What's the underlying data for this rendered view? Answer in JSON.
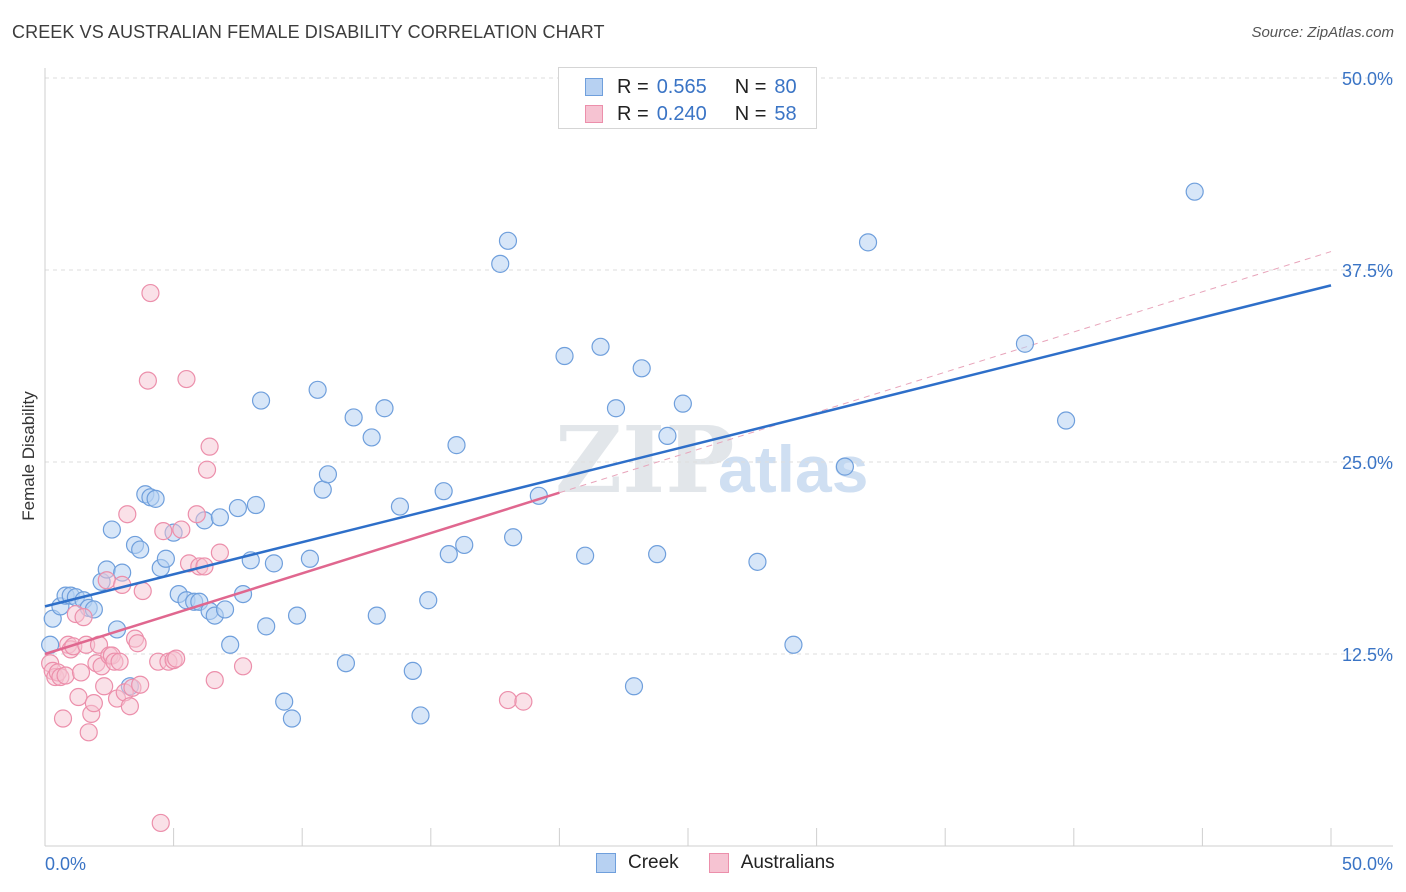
{
  "header": {
    "title": "CREEK VS AUSTRALIAN FEMALE DISABILITY CORRELATION CHART",
    "source": "Source: ZipAtlas.com"
  },
  "legend": {
    "rows": [
      {
        "r_label": "R =",
        "r_value": "0.565",
        "n_label": "N =",
        "n_value": "80"
      },
      {
        "r_label": "R =",
        "r_value": "0.240",
        "n_label": "N =",
        "n_value": "58"
      }
    ]
  },
  "watermark": {
    "zip": "ZIP",
    "atlas": "atlas"
  },
  "colors": {
    "creek_fill": "#b7d1f2",
    "creek_stroke": "#6f9fdc",
    "creek_line": "#2e6fc9",
    "aus_fill": "#f6c3d2",
    "aus_stroke": "#ec8fab",
    "aus_line": "#e0678f",
    "tick_text": "#3a74c5",
    "grid": "#dddddd"
  },
  "chart_data": {
    "type": "scatter",
    "title": "CREEK VS AUSTRALIAN FEMALE DISABILITY CORRELATION CHART",
    "xlabel": "",
    "ylabel": "Female Disability",
    "xlim": [
      0,
      50
    ],
    "ylim": [
      0,
      50
    ],
    "x_tick_labels": [
      "0.0%",
      "50.0%"
    ],
    "y_ticks": [
      12.5,
      25.0,
      37.5,
      50.0
    ],
    "y_tick_labels": [
      "12.5%",
      "25.0%",
      "37.5%",
      "50.0%"
    ],
    "legend_position": "top-center",
    "series": [
      {
        "name": "Creek",
        "r": 0.565,
        "n": 80,
        "trend": {
          "x": [
            0,
            50
          ],
          "y": [
            15.6,
            36.5
          ]
        },
        "points": [
          [
            0.2,
            13.1
          ],
          [
            0.3,
            14.8
          ],
          [
            0.6,
            15.6
          ],
          [
            0.8,
            16.3
          ],
          [
            1.0,
            16.3
          ],
          [
            1.2,
            16.2
          ],
          [
            1.5,
            16.0
          ],
          [
            1.7,
            15.5
          ],
          [
            1.9,
            15.4
          ],
          [
            2.2,
            17.2
          ],
          [
            2.4,
            18.0
          ],
          [
            2.6,
            20.6
          ],
          [
            2.8,
            14.1
          ],
          [
            3.0,
            17.8
          ],
          [
            3.3,
            10.4
          ],
          [
            3.5,
            19.6
          ],
          [
            3.7,
            19.3
          ],
          [
            3.9,
            22.9
          ],
          [
            4.1,
            22.7
          ],
          [
            4.3,
            22.6
          ],
          [
            4.5,
            18.1
          ],
          [
            4.7,
            18.7
          ],
          [
            5.0,
            20.4
          ],
          [
            5.2,
            16.4
          ],
          [
            5.5,
            16.0
          ],
          [
            5.8,
            15.9
          ],
          [
            6.0,
            15.9
          ],
          [
            6.2,
            21.2
          ],
          [
            6.4,
            15.3
          ],
          [
            6.6,
            15.0
          ],
          [
            6.8,
            21.4
          ],
          [
            7.0,
            15.4
          ],
          [
            7.2,
            13.1
          ],
          [
            7.5,
            22.0
          ],
          [
            7.7,
            16.4
          ],
          [
            8.0,
            18.6
          ],
          [
            8.2,
            22.2
          ],
          [
            8.4,
            29.0
          ],
          [
            8.6,
            14.3
          ],
          [
            8.9,
            18.4
          ],
          [
            9.3,
            9.4
          ],
          [
            9.6,
            8.3
          ],
          [
            9.8,
            15.0
          ],
          [
            10.3,
            18.7
          ],
          [
            10.6,
            29.7
          ],
          [
            10.8,
            23.2
          ],
          [
            11.0,
            24.2
          ],
          [
            11.7,
            11.9
          ],
          [
            12.0,
            27.9
          ],
          [
            12.7,
            26.6
          ],
          [
            12.9,
            15.0
          ],
          [
            13.2,
            28.5
          ],
          [
            13.8,
            22.1
          ],
          [
            14.3,
            11.4
          ],
          [
            14.6,
            8.5
          ],
          [
            14.9,
            16.0
          ],
          [
            15.5,
            23.1
          ],
          [
            15.7,
            19.0
          ],
          [
            16.0,
            26.1
          ],
          [
            16.3,
            19.6
          ],
          [
            17.7,
            37.9
          ],
          [
            18.0,
            39.4
          ],
          [
            18.2,
            20.1
          ],
          [
            19.2,
            22.8
          ],
          [
            20.2,
            31.9
          ],
          [
            21.0,
            18.9
          ],
          [
            21.6,
            32.5
          ],
          [
            22.2,
            28.5
          ],
          [
            22.9,
            10.4
          ],
          [
            23.2,
            31.1
          ],
          [
            23.8,
            19.0
          ],
          [
            24.2,
            26.7
          ],
          [
            24.8,
            28.8
          ],
          [
            27.7,
            18.5
          ],
          [
            29.1,
            13.1
          ],
          [
            31.1,
            24.7
          ],
          [
            32.0,
            39.3
          ],
          [
            38.1,
            32.7
          ],
          [
            39.7,
            27.7
          ],
          [
            44.7,
            42.6
          ]
        ]
      },
      {
        "name": "Australians",
        "r": 0.24,
        "n": 58,
        "trend": {
          "x": [
            0,
            20
          ],
          "y": [
            12.5,
            23.0
          ]
        },
        "trend_extension": {
          "x": [
            20,
            50
          ],
          "y": [
            23.0,
            38.7
          ]
        },
        "points": [
          [
            0.2,
            11.9
          ],
          [
            0.3,
            11.4
          ],
          [
            0.4,
            11.0
          ],
          [
            0.5,
            11.3
          ],
          [
            0.6,
            11.0
          ],
          [
            0.7,
            8.3
          ],
          [
            0.8,
            11.1
          ],
          [
            0.9,
            13.1
          ],
          [
            1.0,
            12.8
          ],
          [
            1.1,
            13.0
          ],
          [
            1.2,
            15.1
          ],
          [
            1.3,
            9.7
          ],
          [
            1.4,
            11.3
          ],
          [
            1.5,
            14.9
          ],
          [
            1.6,
            13.1
          ],
          [
            1.7,
            7.4
          ],
          [
            1.8,
            8.6
          ],
          [
            1.9,
            9.3
          ],
          [
            2.0,
            11.9
          ],
          [
            2.1,
            13.1
          ],
          [
            2.2,
            11.7
          ],
          [
            2.3,
            10.4
          ],
          [
            2.4,
            17.3
          ],
          [
            2.5,
            12.4
          ],
          [
            2.6,
            12.4
          ],
          [
            2.7,
            12.0
          ],
          [
            2.8,
            9.6
          ],
          [
            2.9,
            12.0
          ],
          [
            3.0,
            17.0
          ],
          [
            3.1,
            10.0
          ],
          [
            3.2,
            21.6
          ],
          [
            3.3,
            9.1
          ],
          [
            3.4,
            10.3
          ],
          [
            3.5,
            13.5
          ],
          [
            3.6,
            13.2
          ],
          [
            3.7,
            10.5
          ],
          [
            3.8,
            16.6
          ],
          [
            4.0,
            30.3
          ],
          [
            4.1,
            36.0
          ],
          [
            4.4,
            12.0
          ],
          [
            4.5,
            1.5
          ],
          [
            4.6,
            20.5
          ],
          [
            4.8,
            12.0
          ],
          [
            5.0,
            12.1
          ],
          [
            5.1,
            12.2
          ],
          [
            5.3,
            20.6
          ],
          [
            5.5,
            30.4
          ],
          [
            5.6,
            18.4
          ],
          [
            5.9,
            21.6
          ],
          [
            6.0,
            18.2
          ],
          [
            6.2,
            18.2
          ],
          [
            6.3,
            24.5
          ],
          [
            6.4,
            26.0
          ],
          [
            6.6,
            10.8
          ],
          [
            6.8,
            19.1
          ],
          [
            7.7,
            11.7
          ],
          [
            18.0,
            9.5
          ],
          [
            18.6,
            9.4
          ]
        ]
      }
    ]
  }
}
